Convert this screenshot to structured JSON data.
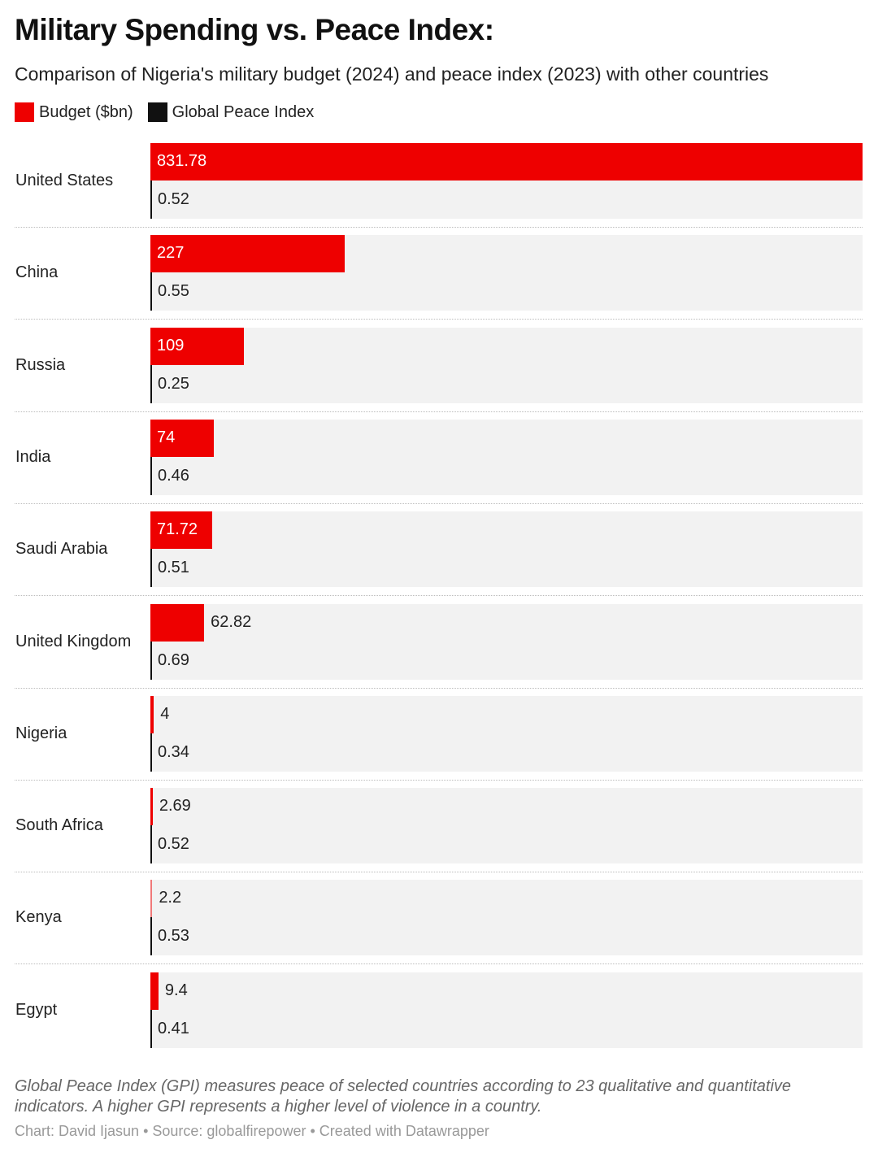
{
  "title": "Military Spending vs. Peace Index:",
  "subtitle": "Comparison of Nigeria's military budget (2024) and peace index (2023) with other countries",
  "colors": {
    "budget": "#ee0000",
    "gpi": "#111111",
    "background": "#f2f2f2"
  },
  "chart_data": {
    "type": "bar",
    "orientation": "horizontal",
    "categories": [
      "United States",
      "China",
      "Russia",
      "India",
      "Saudi Arabia",
      "United Kingdom",
      "Nigeria",
      "South Africa",
      "Kenya",
      "Egypt"
    ],
    "series": [
      {
        "name": "Budget ($bn)",
        "values": [
          831.78,
          227,
          109,
          74,
          71.72,
          62.82,
          4,
          2.69,
          2.2,
          9.4
        ]
      },
      {
        "name": "Global Peace Index",
        "values": [
          0.52,
          0.55,
          0.25,
          0.46,
          0.51,
          0.69,
          0.34,
          0.52,
          0.53,
          0.41
        ]
      }
    ],
    "xlim": [
      0,
      831.78
    ],
    "grid": false,
    "legend_placement": "top-left"
  },
  "notes": "Global Peace Index (GPI) measures peace of selected countries according to 23 qualitative and quantitative indicators. A higher GPI represents a higher level of violence in a country.",
  "credit": "Chart: David Ijasun • Source: globalfirepower  • Created with Datawrapper"
}
